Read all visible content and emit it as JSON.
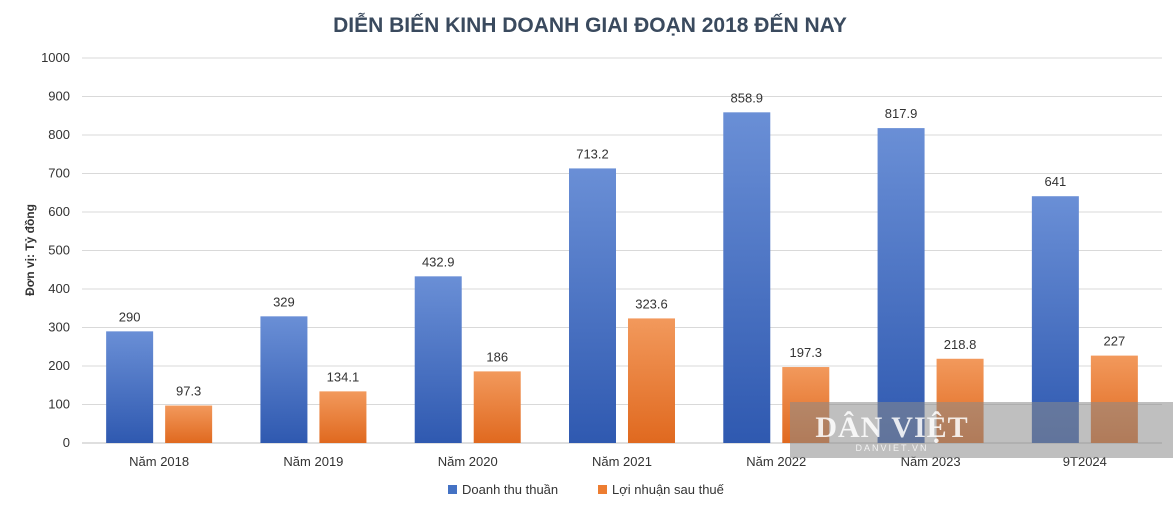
{
  "chart_data": {
    "type": "bar",
    "title": "DIỄN BIẾN KINH DOANH GIAI ĐOẠN 2018 ĐẾN NAY",
    "ylabel": "Đơn vị: Tỷ đồng",
    "xlabel": "",
    "ylim": [
      0,
      1000
    ],
    "yticks": [
      0,
      100,
      200,
      300,
      400,
      500,
      600,
      700,
      800,
      900,
      1000
    ],
    "categories": [
      "Năm 2018",
      "Năm 2019",
      "Năm 2020",
      "Năm 2021",
      "Năm 2022",
      "Năm 2023",
      "9T2024"
    ],
    "series": [
      {
        "name": "Doanh thu thuần",
        "color": "#4472c4",
        "values": [
          290,
          329,
          432.9,
          713.2,
          858.9,
          817.9,
          641
        ],
        "labels": [
          "290",
          "329",
          "432.9",
          "713.2",
          "858.9",
          "817.9",
          "641"
        ]
      },
      {
        "name": "Lợi nhuận sau thuế",
        "color": "#ed7d31",
        "values": [
          97.3,
          134.1,
          186,
          323.6,
          197.3,
          218.8,
          227
        ],
        "labels": [
          "97.3",
          "134.1",
          "186",
          "323.6",
          "197.3",
          "218.8",
          "227"
        ]
      }
    ],
    "grid": true,
    "legend_position": "bottom"
  },
  "watermark": {
    "text": "DÂN VIỆT",
    "subtext": "DANVIET.VN"
  }
}
